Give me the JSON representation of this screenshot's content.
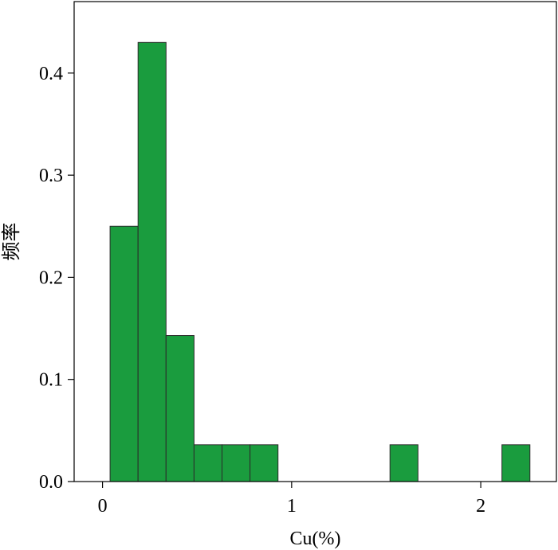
{
  "chart_data": {
    "type": "bar",
    "title": "",
    "xlabel": "Cu(%)",
    "ylabel": "频率",
    "xlim": [
      -0.15,
      2.4
    ],
    "ylim": [
      0,
      0.47
    ],
    "xticks": [
      0,
      1,
      2
    ],
    "yticks": [
      0.0,
      0.1,
      0.2,
      0.3,
      0.4
    ],
    "xtick_labels": [
      "0",
      "1",
      "2"
    ],
    "ytick_labels": [
      "0.0",
      "0.1",
      "0.2",
      "0.3",
      "0.4"
    ],
    "bin_width": 0.148,
    "bins": [
      {
        "x0": 0.04,
        "value": 0.25
      },
      {
        "x0": 0.188,
        "value": 0.43
      },
      {
        "x0": 0.336,
        "value": 0.143
      },
      {
        "x0": 0.484,
        "value": 0.036
      },
      {
        "x0": 0.632,
        "value": 0.036
      },
      {
        "x0": 0.78,
        "value": 0.036
      },
      {
        "x0": 1.52,
        "value": 0.036
      },
      {
        "x0": 2.112,
        "value": 0.036
      }
    ],
    "bar_color": "#1a9c3e",
    "edge_color": "#2b2b2b",
    "grid": false,
    "legend": false
  }
}
